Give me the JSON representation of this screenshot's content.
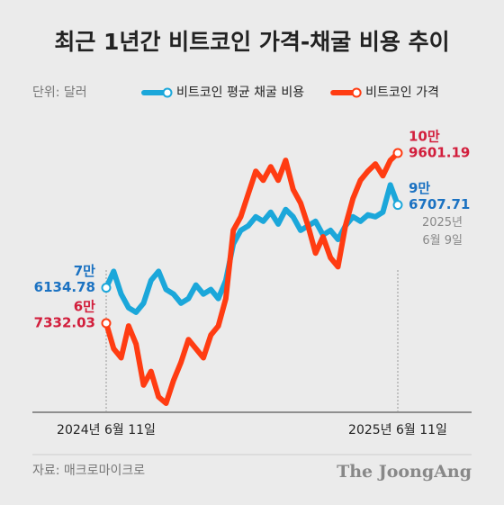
{
  "chart_data": {
    "type": "line",
    "title": "최근 1년간 비트코인 가격-채굴 비용 추이",
    "unit": "단위: 달러",
    "source": "자료: 매크로마이크로",
    "logo": "The JoongAng",
    "annotation": [
      "2025년",
      "6월 9일"
    ],
    "categories": [
      "2024년 6월 11일",
      null,
      null,
      null,
      null,
      null,
      null,
      null,
      null,
      null,
      null,
      null,
      null,
      null,
      null,
      null,
      null,
      null,
      null,
      null,
      null,
      null,
      null,
      null,
      null,
      null,
      null,
      null,
      null,
      null,
      null,
      null,
      null,
      null,
      null,
      null,
      null,
      null,
      null,
      "2025년 6월 11일"
    ],
    "series": [
      {
        "name": "비트코인 평균 채굴 비용",
        "color": "#1ba7da",
        "label_color": "#1b72c2",
        "values": [
          76134.78,
          80216,
          74565,
          71175,
          70044,
          72305,
          77956,
          80216,
          75695,
          74565,
          72305,
          73435,
          76826,
          74565,
          75695,
          73435,
          77956,
          86997,
          90388,
          91518,
          93779,
          92648,
          94909,
          91970,
          95587,
          93779,
          90388,
          91518,
          92648,
          89258,
          90388,
          88128,
          91518,
          93779,
          92648,
          94231,
          93779,
          94909,
          101690,
          96707.71
        ],
        "value_labels": [
          [
            "7만",
            "6134.78"
          ],
          null,
          null,
          null,
          null,
          null,
          null,
          null,
          null,
          null,
          null,
          null,
          null,
          null,
          null,
          null,
          null,
          null,
          null,
          null,
          null,
          null,
          null,
          null,
          null,
          null,
          null,
          null,
          null,
          null,
          null,
          null,
          null,
          null,
          null,
          null,
          null,
          null,
          null,
          [
            "9만",
            "6707.71"
          ]
        ]
      },
      {
        "name": "비트코인 가격",
        "color": "#ff3c12",
        "label_color": "#d21e3c",
        "values": [
          67332.03,
          61003,
          58742,
          66654,
          62133,
          51961,
          55352,
          49023,
          47440,
          53091,
          57612,
          63263,
          61003,
          58742,
          64393,
          66654,
          73435,
          90388,
          93779,
          99430,
          105081,
          102820,
          106211,
          102820,
          107793,
          100560,
          97169,
          91518,
          84737,
          88806,
          83607,
          81346,
          91518,
          98299,
          102820,
          105081,
          106889,
          103950,
          107793,
          109601.19
        ],
        "value_labels": [
          [
            "6만",
            "7332.03"
          ],
          null,
          null,
          null,
          null,
          null,
          null,
          null,
          null,
          null,
          null,
          null,
          null,
          null,
          null,
          null,
          null,
          null,
          null,
          null,
          null,
          null,
          null,
          null,
          null,
          null,
          null,
          null,
          null,
          null,
          null,
          null,
          null,
          null,
          null,
          null,
          null,
          null,
          null,
          [
            "10만",
            "9601.19"
          ]
        ]
      }
    ]
  }
}
